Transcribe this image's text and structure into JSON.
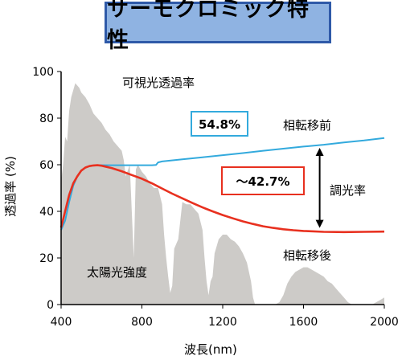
{
  "title": "サーモクロミック特性",
  "chart_data": {
    "type": "line",
    "xlabel": "波長(nm)",
    "ylabel": "透過率 (%)",
    "xlim": [
      400,
      2000
    ],
    "ylim": [
      0,
      100
    ],
    "xticks": [
      400,
      800,
      1200,
      1600,
      2000
    ],
    "yticks": [
      0,
      20,
      40,
      60,
      80,
      100
    ],
    "grid": false,
    "series": [
      {
        "name": "相転移前",
        "color": "#33aadd",
        "x": [
          400,
          420,
          440,
          460,
          480,
          500,
          520,
          540,
          560,
          580,
          600,
          650,
          700,
          750,
          800,
          850,
          870,
          880,
          900,
          1000,
          1100,
          1200,
          1300,
          1400,
          1500,
          1600,
          1700,
          1800,
          1900,
          2000
        ],
        "y": [
          32,
          36,
          44,
          51,
          55,
          57.5,
          58.8,
          59.4,
          59.7,
          59.8,
          59.8,
          59.8,
          59.8,
          59.8,
          59.8,
          59.8,
          59.9,
          61,
          61.4,
          62.3,
          63.2,
          64.1,
          65.0,
          66.0,
          66.9,
          67.8,
          68.6,
          69.6,
          70.4,
          71.5
        ]
      },
      {
        "name": "相転移後",
        "color": "#e8301f",
        "x": [
          400,
          420,
          440,
          460,
          480,
          500,
          520,
          540,
          560,
          580,
          600,
          650,
          700,
          750,
          800,
          850,
          900,
          950,
          1000,
          1050,
          1100,
          1150,
          1200,
          1250,
          1300,
          1350,
          1400,
          1450,
          1500,
          1550,
          1600,
          1650,
          1700,
          1800,
          1900,
          2000
        ],
        "y": [
          33,
          40,
          47,
          52,
          55,
          57.5,
          58.8,
          59.4,
          59.7,
          59.8,
          59.6,
          58.6,
          57.2,
          55.6,
          54.0,
          52.0,
          49.8,
          47.6,
          45.6,
          43.6,
          41.7,
          40.0,
          38.4,
          37.0,
          35.7,
          34.6,
          33.6,
          32.9,
          32.3,
          31.9,
          31.6,
          31.4,
          31.2,
          31.1,
          31.2,
          31.3
        ]
      }
    ],
    "solar_spectrum": {
      "label": "太陽光強度",
      "color": "#cdcbc8",
      "x": [
        400,
        410,
        420,
        430,
        440,
        450,
        460,
        470,
        480,
        490,
        500,
        520,
        540,
        560,
        580,
        600,
        620,
        640,
        660,
        680,
        700,
        710,
        720,
        740,
        760,
        770,
        780,
        800,
        820,
        840,
        860,
        880,
        900,
        910,
        920,
        930,
        940,
        950,
        960,
        980,
        1000,
        1020,
        1040,
        1060,
        1080,
        1100,
        1110,
        1120,
        1130,
        1140,
        1150,
        1160,
        1180,
        1200,
        1220,
        1240,
        1260,
        1280,
        1300,
        1320,
        1340,
        1350,
        1360,
        1380,
        1400,
        1420,
        1440,
        1460,
        1480,
        1500,
        1520,
        1540,
        1560,
        1580,
        1600,
        1620,
        1640,
        1660,
        1680,
        1700,
        1720,
        1740,
        1760,
        1780,
        1800,
        1820,
        1840,
        1860,
        1880,
        1900,
        1920,
        1940,
        1960,
        1980,
        2000
      ],
      "y": [
        53,
        60,
        72,
        70,
        83,
        89,
        92,
        95,
        94,
        93,
        91,
        89,
        86,
        82,
        80,
        78,
        75,
        73,
        70,
        68,
        66,
        62,
        55,
        60,
        20,
        58,
        60,
        57,
        55,
        52,
        50,
        50,
        43,
        30,
        20,
        12,
        5,
        8,
        24,
        28,
        44,
        43,
        43,
        41,
        39,
        32,
        20,
        10,
        4,
        10,
        12,
        22,
        28,
        30,
        30,
        28,
        27,
        25,
        22,
        18,
        10,
        3,
        0,
        0,
        0,
        0,
        0,
        0,
        1,
        4,
        9,
        12,
        14,
        15,
        16,
        16,
        15,
        14,
        13,
        12,
        10,
        9,
        7,
        5,
        3,
        1,
        0,
        0,
        0,
        0,
        0,
        0,
        1,
        2,
        3
      ]
    },
    "annotations": {
      "visible_transmittance": "可視光透過率",
      "before_value": "54.8%",
      "after_value": "～42.7%",
      "before_label": "相転移前",
      "after_label": "相転移後",
      "modulation_label": "調光率",
      "solar_label": "太陽光強度"
    }
  }
}
